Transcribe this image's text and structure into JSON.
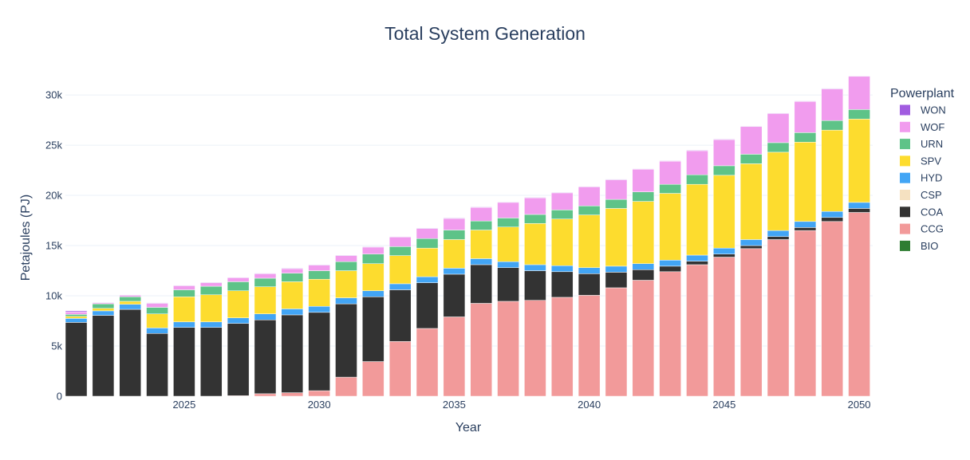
{
  "chart_data": {
    "type": "bar",
    "stacked": true,
    "title": "Total System Generation",
    "xlabel": "Year",
    "ylabel": "Petajoules (PJ)",
    "xlim": [
      2020.6,
      2050.5
    ],
    "ylim": [
      0,
      33500
    ],
    "x_ticks": [
      2025,
      2030,
      2035,
      2040,
      2045,
      2050
    ],
    "x_tick_labels": [
      "2025",
      "2030",
      "2035",
      "2040",
      "2045",
      "2050"
    ],
    "y_ticks": [
      0,
      5000,
      10000,
      15000,
      20000,
      25000,
      30000
    ],
    "y_tick_labels": [
      "0",
      "5k",
      "10k",
      "15k",
      "20k",
      "25k",
      "30k"
    ],
    "grid": true,
    "legend_title": "Powerplant",
    "legend_position": "right",
    "categories": [
      2021,
      2022,
      2023,
      2024,
      2025,
      2026,
      2027,
      2028,
      2029,
      2030,
      2031,
      2032,
      2033,
      2034,
      2035,
      2036,
      2037,
      2038,
      2039,
      2040,
      2041,
      2042,
      2043,
      2044,
      2045,
      2046,
      2047,
      2048,
      2049,
      2050
    ],
    "series": [
      {
        "name": "BIO",
        "color": "#2e7d32",
        "values": [
          0,
          0,
          0,
          0,
          0,
          0,
          0,
          0,
          0,
          0,
          0,
          0,
          0,
          0,
          0,
          0,
          0,
          0,
          0,
          0,
          0,
          0,
          0,
          0,
          0,
          0,
          0,
          0,
          0,
          0
        ]
      },
      {
        "name": "CCG",
        "color": "#f29a9a",
        "values": [
          0,
          0,
          0,
          0,
          0,
          0,
          50,
          250,
          350,
          550,
          1900,
          3450,
          5450,
          6750,
          7900,
          9250,
          9450,
          9550,
          9850,
          10050,
          10800,
          11550,
          12400,
          13100,
          13850,
          14700,
          15600,
          16500,
          17400,
          18300
        ]
      },
      {
        "name": "COA",
        "color": "#333333",
        "values": [
          7350,
          8050,
          8650,
          6250,
          6850,
          6850,
          7200,
          7350,
          7750,
          7800,
          7300,
          6450,
          5150,
          4550,
          4250,
          3850,
          3350,
          2950,
          2550,
          2150,
          1550,
          1050,
          550,
          350,
          300,
          300,
          300,
          300,
          400,
          400
        ]
      },
      {
        "name": "CSP",
        "color": "#f5e1c1",
        "values": [
          0,
          0,
          0,
          0,
          0,
          0,
          0,
          0,
          0,
          0,
          0,
          0,
          0,
          0,
          0,
          0,
          0,
          0,
          0,
          0,
          0,
          0,
          0,
          0,
          0,
          0,
          0,
          0,
          0,
          0
        ]
      },
      {
        "name": "HYD",
        "color": "#42a5f5",
        "values": [
          400,
          450,
          500,
          550,
          550,
          550,
          550,
          600,
          600,
          600,
          600,
          600,
          600,
          600,
          600,
          600,
          600,
          600,
          600,
          600,
          600,
          600,
          600,
          600,
          600,
          600,
          600,
          600,
          600,
          600
        ]
      },
      {
        "name": "SPV",
        "color": "#fddc2e",
        "values": [
          200,
          250,
          300,
          1400,
          2500,
          2700,
          2700,
          2700,
          2700,
          2700,
          2700,
          2700,
          2800,
          2850,
          2850,
          2850,
          3450,
          4100,
          4650,
          5250,
          5750,
          6200,
          6650,
          7050,
          7250,
          7550,
          7800,
          7900,
          8100,
          8300
        ]
      },
      {
        "name": "URN",
        "color": "#5ec388",
        "values": [
          200,
          450,
          450,
          650,
          700,
          850,
          900,
          850,
          850,
          850,
          900,
          950,
          900,
          950,
          950,
          900,
          900,
          900,
          900,
          900,
          900,
          950,
          900,
          950,
          950,
          950,
          950,
          950,
          950,
          950
        ]
      },
      {
        "name": "WOF",
        "color": "#f19cee",
        "values": [
          250,
          100,
          150,
          400,
          400,
          350,
          400,
          450,
          450,
          550,
          600,
          700,
          950,
          1000,
          1150,
          1350,
          1550,
          1650,
          1700,
          1900,
          1950,
          2250,
          2300,
          2400,
          2600,
          2750,
          2900,
          3100,
          3150,
          3300
        ]
      },
      {
        "name": "WON",
        "color": "#a15ce0",
        "values": [
          100,
          50,
          50,
          50,
          50,
          50,
          50,
          50,
          50,
          50,
          50,
          50,
          50,
          50,
          50,
          50,
          50,
          50,
          50,
          50,
          50,
          50,
          50,
          50,
          50,
          50,
          50,
          50,
          50,
          50
        ]
      }
    ]
  }
}
